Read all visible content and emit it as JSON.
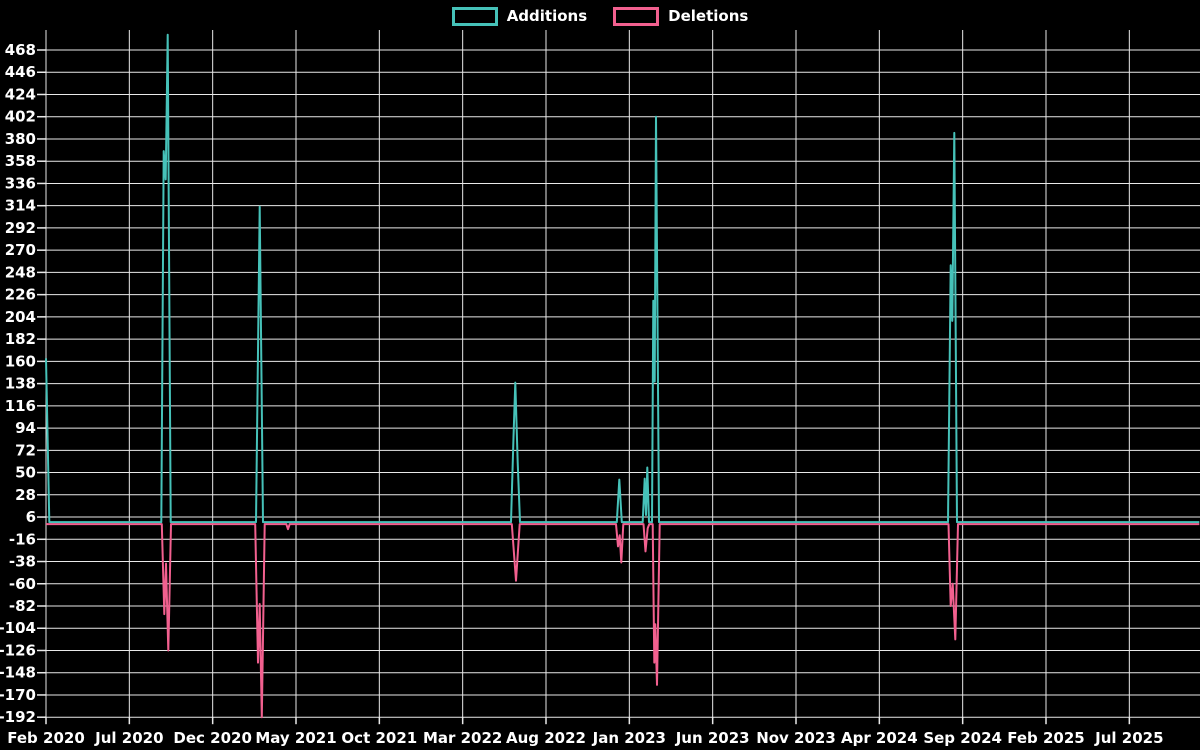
{
  "legend": {
    "items": [
      {
        "label": "Additions",
        "color": "#46c2b9"
      },
      {
        "label": "Deletions",
        "color": "#f2608f"
      }
    ]
  },
  "chart_data": {
    "type": "line",
    "title": "",
    "background_color": "#000000",
    "grid_color": "#e9e9e9",
    "text_color": "#ffffff",
    "grid": true,
    "legend_position": "top-center",
    "x_axis": {
      "tick_labels": [
        "Feb 2020",
        "Jul 2020",
        "Dec 2020",
        "May 2021",
        "Oct 2021",
        "Mar 2022",
        "Aug 2022",
        "Jan 2023",
        "Jun 2023",
        "Nov 2023",
        "Apr 2024",
        "Sep 2024",
        "Feb 2025",
        "Jul 2025"
      ],
      "unit": "months since Feb 2020",
      "months_per_gridline": 5
    },
    "y_axis": {
      "tick_labels": [
        468,
        446,
        424,
        402,
        380,
        358,
        336,
        314,
        292,
        270,
        248,
        226,
        204,
        182,
        160,
        138,
        116,
        94,
        72,
        50,
        28,
        6,
        -16,
        -38,
        -60,
        -82,
        -104,
        -126,
        -148,
        -170,
        -192
      ],
      "min": -192,
      "max": 483,
      "tick_step": 22
    },
    "series": [
      {
        "name": "Additions",
        "color": "#46c2b9",
        "baseline": 1,
        "points": [
          [
            0,
            163
          ],
          [
            0.2,
            1
          ],
          [
            6.92,
            1
          ],
          [
            7.06,
            368
          ],
          [
            7.18,
            340
          ],
          [
            7.3,
            483
          ],
          [
            7.48,
            1
          ],
          [
            12.6,
            1
          ],
          [
            12.82,
            313
          ],
          [
            13.02,
            1
          ],
          [
            27.9,
            1
          ],
          [
            28.05,
            85
          ],
          [
            28.16,
            139
          ],
          [
            28.3,
            60
          ],
          [
            28.44,
            1
          ],
          [
            34.25,
            1
          ],
          [
            34.4,
            43
          ],
          [
            34.55,
            1
          ],
          [
            35.8,
            1
          ],
          [
            35.92,
            44
          ],
          [
            36.0,
            8
          ],
          [
            36.08,
            55
          ],
          [
            36.18,
            1
          ],
          [
            36.36,
            1
          ],
          [
            36.44,
            220
          ],
          [
            36.52,
            140
          ],
          [
            36.6,
            402
          ],
          [
            36.78,
            1
          ],
          [
            54.12,
            1
          ],
          [
            54.28,
            255
          ],
          [
            54.38,
            200
          ],
          [
            54.5,
            386
          ],
          [
            54.66,
            1
          ],
          [
            69.2,
            1
          ]
        ]
      },
      {
        "name": "Deletions",
        "color": "#f2608f",
        "baseline": -1,
        "points": [
          [
            0,
            -1
          ],
          [
            6.95,
            -1
          ],
          [
            7.1,
            -90
          ],
          [
            7.2,
            -40
          ],
          [
            7.34,
            -126
          ],
          [
            7.5,
            -1
          ],
          [
            12.55,
            -1
          ],
          [
            12.72,
            -138
          ],
          [
            12.82,
            -80
          ],
          [
            12.95,
            -192
          ],
          [
            13.12,
            -1
          ],
          [
            14.42,
            -1
          ],
          [
            14.52,
            -6
          ],
          [
            14.62,
            -1
          ],
          [
            27.95,
            -1
          ],
          [
            28.2,
            -57
          ],
          [
            28.42,
            -1
          ],
          [
            34.2,
            -1
          ],
          [
            34.32,
            -23
          ],
          [
            34.42,
            -12
          ],
          [
            34.52,
            -39
          ],
          [
            34.64,
            -1
          ],
          [
            35.85,
            -1
          ],
          [
            35.97,
            -28
          ],
          [
            36.1,
            -5
          ],
          [
            36.2,
            -1
          ],
          [
            36.4,
            -1
          ],
          [
            36.5,
            -138
          ],
          [
            36.56,
            -100
          ],
          [
            36.66,
            -160
          ],
          [
            36.82,
            -1
          ],
          [
            54.15,
            -1
          ],
          [
            54.28,
            -82
          ],
          [
            54.4,
            -60
          ],
          [
            54.56,
            -115
          ],
          [
            54.72,
            -1
          ],
          [
            69.2,
            -1
          ]
        ]
      }
    ],
    "peaks": [
      {
        "date": "Feb 2020",
        "additions": 163,
        "deletions": 0
      },
      {
        "date": "Sep 2020",
        "additions": 483,
        "deletions": -126
      },
      {
        "date": "Mar 2021",
        "additions": 313,
        "deletions": -192
      },
      {
        "date": "Jun 2022",
        "additions": 139,
        "deletions": -57
      },
      {
        "date": "Dec 2022",
        "additions": 43,
        "deletions": -39
      },
      {
        "date": "Feb 2023",
        "additions": 402,
        "deletions": -160
      },
      {
        "date": "Aug 2024",
        "additions": 386,
        "deletions": -115
      }
    ]
  }
}
